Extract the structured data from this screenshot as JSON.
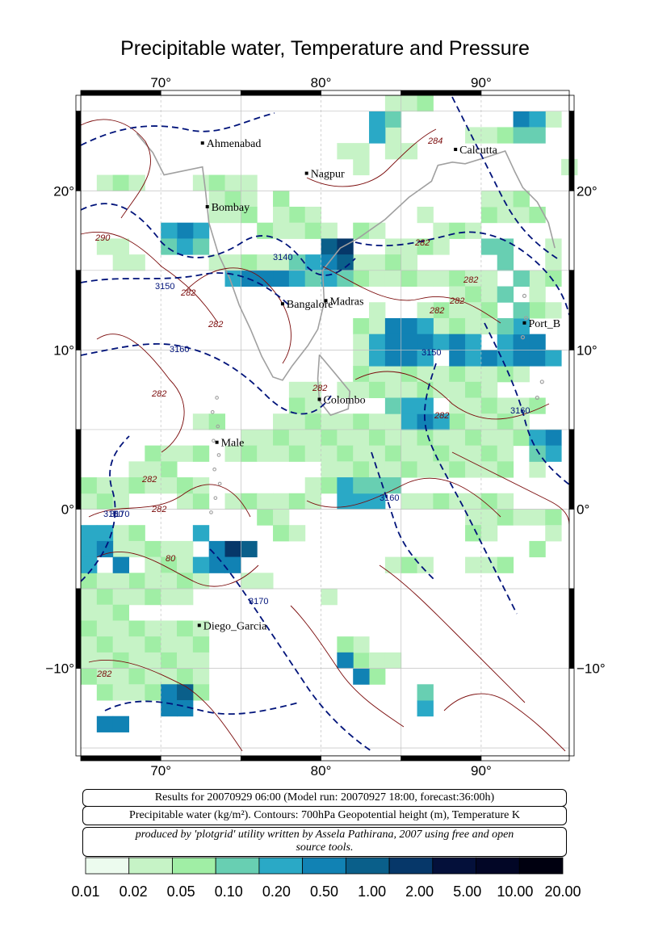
{
  "title": "Precipitable water, Temperature and Pressure",
  "axes": {
    "lon_ticks": [
      "70°",
      "80°",
      "90°"
    ],
    "lat_ticks": [
      "20°",
      "10°",
      "0°",
      "−10°"
    ]
  },
  "cities": [
    {
      "name": "Ahmenabad",
      "lon": 72.6,
      "lat": 23.0
    },
    {
      "name": "Nagpur",
      "lon": 79.1,
      "lat": 21.1
    },
    {
      "name": "Calcutta",
      "lon": 88.4,
      "lat": 22.6
    },
    {
      "name": "Bombay",
      "lon": 72.9,
      "lat": 19.0
    },
    {
      "name": "Bangalore",
      "lon": 77.6,
      "lat": 12.9
    },
    {
      "name": "Madras",
      "lon": 80.3,
      "lat": 13.1
    },
    {
      "name": "Port_B",
      "lon": 92.7,
      "lat": 11.7
    },
    {
      "name": "Colombo",
      "lon": 79.9,
      "lat": 6.9
    },
    {
      "name": "Male",
      "lon": 73.5,
      "lat": 4.2
    },
    {
      "name": "Diego_Garcia",
      "lon": 72.4,
      "lat": -7.3
    }
  ],
  "contour_labels": {
    "temperature": [
      "284",
      "282",
      "290",
      "282",
      "282",
      "282",
      "282",
      "282",
      "282",
      "282",
      "282",
      "282",
      "282",
      "80",
      "282"
    ],
    "geopotential": [
      "3140",
      "3150",
      "3160",
      "3150",
      "3160",
      "3160",
      "3150",
      "3170",
      "3170"
    ]
  },
  "info": {
    "line1": "Results for 20070929 06:00 (Model run: 20070927 18:00, forecast:36:00h)",
    "line2": "Precipitable water (kg/m²).  Contours: 700hPa Geopotential height (m), Temperature K",
    "line3a": "produced by 'plotgrid' utility written by Assela Pathirana, 2007 using free and open",
    "line3b": "source tools."
  },
  "legend": {
    "labels": [
      "0.01",
      "0.02",
      "0.05",
      "0.10",
      "0.20",
      "0.50",
      "1.00",
      "2.00",
      "5.00",
      "10.00",
      "20.00"
    ],
    "colors": [
      "#ecfbee",
      "#c6f3c6",
      "#a0eea5",
      "#68cfb2",
      "#2aa9c6",
      "#1182b4",
      "#0a5f8a",
      "#063769",
      "#04103a",
      "#020626",
      "#000010"
    ]
  },
  "colors": {
    "temp_contour": "#7a0a0a",
    "height_contour": "#00137a",
    "coast": "#a0a0a0",
    "grid": "#c0c0c0"
  },
  "pw_cells": [
    [
      80,
      16,
      6
    ],
    [
      81,
      16,
      7
    ],
    [
      80,
      15,
      5
    ],
    [
      81,
      15,
      6
    ],
    [
      79,
      15,
      4
    ],
    [
      78,
      15,
      3
    ],
    [
      76,
      14,
      5
    ],
    [
      77,
      14,
      5
    ],
    [
      78,
      14,
      4
    ],
    [
      79,
      14,
      3
    ],
    [
      80,
      14,
      4
    ],
    [
      81,
      14,
      3
    ],
    [
      74,
      14,
      4
    ],
    [
      75,
      14,
      5
    ],
    [
      72,
      17,
      4
    ],
    [
      71,
      17,
      5
    ],
    [
      70,
      17,
      4
    ],
    [
      70,
      16,
      3
    ],
    [
      71,
      16,
      4
    ],
    [
      72,
      16,
      3
    ],
    [
      84,
      11,
      5
    ],
    [
      85,
      11,
      5
    ],
    [
      86,
      11,
      4
    ],
    [
      83,
      10,
      4
    ],
    [
      84,
      10,
      5
    ],
    [
      85,
      10,
      5
    ],
    [
      86,
      10,
      5
    ],
    [
      87,
      10,
      4
    ],
    [
      83,
      9,
      4
    ],
    [
      84,
      9,
      5
    ],
    [
      85,
      9,
      5
    ],
    [
      86,
      9,
      4
    ],
    [
      88,
      9,
      5
    ],
    [
      89,
      9,
      4
    ],
    [
      90,
      9,
      5
    ],
    [
      91,
      9,
      4
    ],
    [
      92,
      9,
      5
    ],
    [
      93,
      9,
      5
    ],
    [
      94,
      9,
      4
    ],
    [
      88,
      10,
      5
    ],
    [
      89,
      10,
      4
    ],
    [
      91,
      10,
      4
    ],
    [
      92,
      10,
      5
    ],
    [
      93,
      10,
      5
    ],
    [
      92,
      11,
      4
    ],
    [
      91,
      11,
      3
    ],
    [
      92,
      12,
      3
    ],
    [
      91,
      13,
      3
    ],
    [
      92,
      14,
      3
    ],
    [
      91,
      15,
      3
    ],
    [
      90,
      16,
      3
    ],
    [
      91,
      16,
      3
    ],
    [
      83,
      23,
      4
    ],
    [
      83,
      24,
      4
    ],
    [
      84,
      24,
      3
    ],
    [
      92,
      24,
      5
    ],
    [
      93,
      24,
      4
    ],
    [
      92,
      23,
      3
    ],
    [
      93,
      23,
      3
    ],
    [
      73,
      -3,
      5
    ],
    [
      74,
      -3,
      7
    ],
    [
      75,
      -3,
      6
    ],
    [
      73,
      -4,
      5
    ],
    [
      74,
      -4,
      5
    ],
    [
      72,
      -4,
      4
    ],
    [
      72,
      -2,
      4
    ],
    [
      65,
      -2,
      4
    ],
    [
      66,
      -2,
      4
    ],
    [
      65,
      -3,
      4
    ],
    [
      66,
      -3,
      5
    ],
    [
      67,
      -4,
      5
    ],
    [
      65,
      -4,
      4
    ],
    [
      70,
      -12,
      5
    ],
    [
      71,
      -12,
      6
    ],
    [
      70,
      -13,
      5
    ],
    [
      71,
      -13,
      5
    ],
    [
      66,
      -14,
      5
    ],
    [
      67,
      -14,
      5
    ],
    [
      81,
      0,
      4
    ],
    [
      82,
      0,
      4
    ],
    [
      83,
      0,
      4
    ],
    [
      81,
      1,
      4
    ],
    [
      82,
      1,
      3
    ],
    [
      83,
      1,
      3
    ],
    [
      84,
      1,
      3
    ],
    [
      85,
      5,
      4
    ],
    [
      86,
      5,
      5
    ],
    [
      87,
      5,
      4
    ],
    [
      84,
      6,
      3
    ],
    [
      85,
      6,
      4
    ],
    [
      86,
      6,
      4
    ],
    [
      94,
      4,
      5
    ],
    [
      93,
      4,
      4
    ],
    [
      94,
      3,
      4
    ],
    [
      93,
      3,
      3
    ],
    [
      86,
      -13,
      4
    ],
    [
      86,
      -12,
      3
    ],
    [
      81,
      -10,
      5
    ],
    [
      82,
      -11,
      5
    ]
  ],
  "pw_light": [
    [
      77,
      19
    ],
    [
      78,
      18
    ],
    [
      79,
      18
    ],
    [
      77,
      18
    ],
    [
      76,
      17
    ],
    [
      77,
      17
    ],
    [
      78,
      17
    ],
    [
      79,
      17
    ],
    [
      80,
      17
    ],
    [
      82,
      17
    ],
    [
      83,
      17
    ],
    [
      84,
      16
    ],
    [
      85,
      16
    ],
    [
      86,
      16
    ],
    [
      87,
      16
    ],
    [
      73,
      19
    ],
    [
      74,
      19
    ],
    [
      75,
      19
    ],
    [
      73,
      18
    ],
    [
      74,
      18
    ],
    [
      75,
      18
    ],
    [
      73,
      15
    ],
    [
      74,
      15
    ],
    [
      75,
      15
    ],
    [
      76,
      15
    ],
    [
      77,
      15
    ],
    [
      82,
      15
    ],
    [
      83,
      15
    ],
    [
      84,
      15
    ],
    [
      85,
      15
    ],
    [
      82,
      14
    ],
    [
      83,
      14
    ],
    [
      84,
      14
    ],
    [
      85,
      14
    ],
    [
      86,
      14
    ],
    [
      87,
      14
    ],
    [
      88,
      14
    ],
    [
      89,
      14
    ],
    [
      90,
      14
    ],
    [
      93,
      14
    ],
    [
      88,
      13
    ],
    [
      89,
      13
    ],
    [
      90,
      13
    ],
    [
      93,
      13
    ],
    [
      87,
      12
    ],
    [
      88,
      12
    ],
    [
      89,
      12
    ],
    [
      90,
      12
    ],
    [
      93,
      12
    ],
    [
      94,
      12
    ],
    [
      86,
      12
    ],
    [
      83,
      12
    ],
    [
      82,
      11
    ],
    [
      83,
      11
    ],
    [
      87,
      11
    ],
    [
      88,
      11
    ],
    [
      89,
      11
    ],
    [
      90,
      11
    ],
    [
      82,
      10
    ],
    [
      82,
      9
    ],
    [
      82,
      8
    ],
    [
      83,
      8
    ],
    [
      84,
      8
    ],
    [
      85,
      8
    ],
    [
      86,
      8
    ],
    [
      87,
      8
    ],
    [
      88,
      8
    ],
    [
      89,
      8
    ],
    [
      90,
      8
    ],
    [
      91,
      8
    ],
    [
      92,
      8
    ],
    [
      81,
      7
    ],
    [
      82,
      7
    ],
    [
      83,
      7
    ],
    [
      84,
      7
    ],
    [
      85,
      7
    ],
    [
      86,
      7
    ],
    [
      87,
      7
    ],
    [
      88,
      7
    ],
    [
      89,
      7
    ],
    [
      90,
      7
    ],
    [
      78,
      7
    ],
    [
      79,
      7
    ],
    [
      78,
      6
    ],
    [
      79,
      6
    ],
    [
      77,
      5
    ],
    [
      78,
      5
    ],
    [
      79,
      5
    ],
    [
      80,
      5
    ],
    [
      81,
      5
    ],
    [
      82,
      5
    ],
    [
      83,
      5
    ],
    [
      84,
      5
    ],
    [
      88,
      6
    ],
    [
      89,
      6
    ],
    [
      90,
      6
    ],
    [
      91,
      6
    ],
    [
      92,
      6
    ],
    [
      93,
      6
    ],
    [
      88,
      5
    ],
    [
      89,
      5
    ],
    [
      90,
      5
    ],
    [
      91,
      5
    ],
    [
      92,
      5
    ],
    [
      72,
      5
    ],
    [
      73,
      5
    ],
    [
      75,
      4
    ],
    [
      76,
      4
    ],
    [
      77,
      4
    ],
    [
      78,
      4
    ],
    [
      79,
      4
    ],
    [
      80,
      4
    ],
    [
      81,
      4
    ],
    [
      82,
      4
    ],
    [
      83,
      4
    ],
    [
      84,
      4
    ],
    [
      85,
      4
    ],
    [
      86,
      4
    ],
    [
      87,
      4
    ],
    [
      88,
      4
    ],
    [
      89,
      4
    ],
    [
      90,
      4
    ],
    [
      91,
      4
    ],
    [
      92,
      4
    ],
    [
      69,
      3
    ],
    [
      70,
      3
    ],
    [
      71,
      3
    ],
    [
      72,
      3
    ],
    [
      74,
      3
    ],
    [
      75,
      3
    ],
    [
      76,
      3
    ],
    [
      77,
      3
    ],
    [
      78,
      3
    ],
    [
      79,
      3
    ],
    [
      80,
      3
    ],
    [
      81,
      3
    ],
    [
      82,
      3
    ],
    [
      83,
      3
    ],
    [
      84,
      3
    ],
    [
      85,
      3
    ],
    [
      86,
      3
    ],
    [
      87,
      3
    ],
    [
      88,
      3
    ],
    [
      89,
      3
    ],
    [
      90,
      3
    ],
    [
      91,
      3
    ],
    [
      68,
      2
    ],
    [
      69,
      2
    ],
    [
      70,
      2
    ],
    [
      80,
      2
    ],
    [
      81,
      2
    ],
    [
      82,
      2
    ],
    [
      83,
      2
    ],
    [
      84,
      2
    ],
    [
      85,
      2
    ],
    [
      86,
      2
    ],
    [
      87,
      2
    ],
    [
      88,
      2
    ],
    [
      89,
      2
    ],
    [
      90,
      2
    ],
    [
      91,
      2
    ],
    [
      93,
      2
    ],
    [
      65,
      0
    ],
    [
      66,
      0
    ],
    [
      67,
      0
    ],
    [
      71,
      0
    ],
    [
      72,
      0
    ],
    [
      74,
      0
    ],
    [
      75,
      0
    ],
    [
      76,
      0
    ],
    [
      77,
      0
    ],
    [
      78,
      0
    ],
    [
      79,
      0
    ],
    [
      85,
      0
    ],
    [
      86,
      0
    ],
    [
      87,
      0
    ],
    [
      88,
      0
    ],
    [
      89,
      0
    ],
    [
      90,
      0
    ],
    [
      91,
      0
    ],
    [
      65,
      1
    ],
    [
      66,
      1
    ],
    [
      67,
      1
    ],
    [
      68,
      1
    ],
    [
      69,
      1
    ],
    [
      70,
      1
    ],
    [
      71,
      1
    ],
    [
      72,
      1
    ],
    [
      79,
      1
    ],
    [
      80,
      1
    ],
    [
      76,
      -1
    ],
    [
      77,
      -1
    ],
    [
      77,
      -2
    ],
    [
      78,
      -2
    ],
    [
      89,
      -1
    ],
    [
      90,
      -1
    ],
    [
      91,
      -1
    ],
    [
      92,
      -1
    ],
    [
      93,
      -1
    ],
    [
      94,
      -1
    ],
    [
      89,
      -2
    ],
    [
      90,
      -2
    ],
    [
      94,
      -2
    ],
    [
      93,
      -3
    ],
    [
      67,
      -2
    ],
    [
      68,
      -2
    ],
    [
      67,
      -3
    ],
    [
      68,
      -3
    ],
    [
      69,
      -3
    ],
    [
      70,
      -3
    ],
    [
      71,
      -3
    ],
    [
      69,
      -4
    ],
    [
      70,
      -4
    ],
    [
      71,
      -4
    ],
    [
      68,
      -5
    ],
    [
      69,
      -5
    ],
    [
      70,
      -5
    ],
    [
      71,
      -5
    ],
    [
      72,
      -5
    ],
    [
      75,
      -5
    ],
    [
      76,
      -5
    ],
    [
      65,
      -5
    ],
    [
      66,
      -5
    ],
    [
      67,
      -5
    ],
    [
      65,
      -6
    ],
    [
      66,
      -6
    ],
    [
      67,
      -6
    ],
    [
      68,
      -6
    ],
    [
      69,
      -6
    ],
    [
      70,
      -6
    ],
    [
      71,
      -6
    ],
    [
      80,
      -6
    ],
    [
      65,
      -7
    ],
    [
      66,
      -7
    ],
    [
      67,
      -7
    ],
    [
      65,
      -8
    ],
    [
      66,
      -8
    ],
    [
      67,
      -8
    ],
    [
      68,
      -8
    ],
    [
      69,
      -8
    ],
    [
      70,
      -8
    ],
    [
      71,
      -8
    ],
    [
      72,
      -8
    ],
    [
      65,
      -9
    ],
    [
      66,
      -9
    ],
    [
      67,
      -9
    ],
    [
      68,
      -9
    ],
    [
      69,
      -9
    ],
    [
      70,
      -9
    ],
    [
      71,
      -9
    ],
    [
      72,
      -9
    ],
    [
      65,
      -10
    ],
    [
      66,
      -10
    ],
    [
      67,
      -10
    ],
    [
      68,
      -10
    ],
    [
      69,
      -10
    ],
    [
      70,
      -10
    ],
    [
      71,
      -10
    ],
    [
      72,
      -10
    ],
    [
      65,
      -11
    ],
    [
      66,
      -11
    ],
    [
      67,
      -11
    ],
    [
      68,
      -11
    ],
    [
      69,
      -11
    ],
    [
      70,
      -11
    ],
    [
      71,
      -11
    ],
    [
      72,
      -11
    ],
    [
      66,
      -12
    ],
    [
      67,
      -12
    ],
    [
      68,
      -12
    ],
    [
      69,
      -12
    ],
    [
      72,
      -12
    ],
    [
      84,
      -4
    ],
    [
      85,
      -4
    ],
    [
      86,
      -4
    ],
    [
      89,
      -4
    ],
    [
      90,
      -4
    ],
    [
      91,
      -4
    ],
    [
      82,
      -10
    ],
    [
      83,
      -10
    ],
    [
      84,
      -10
    ],
    [
      83,
      -11
    ],
    [
      82,
      -9
    ],
    [
      81,
      -9
    ],
    [
      87,
      17
    ],
    [
      88,
      17
    ],
    [
      89,
      17
    ],
    [
      86,
      18
    ],
    [
      90,
      18
    ],
    [
      91,
      18
    ],
    [
      92,
      18
    ],
    [
      93,
      18
    ],
    [
      90,
      19
    ],
    [
      91,
      19
    ],
    [
      92,
      19
    ],
    [
      94,
      16
    ],
    [
      94,
      15
    ],
    [
      94,
      14
    ],
    [
      82,
      21
    ],
    [
      82,
      22
    ],
    [
      81,
      22
    ],
    [
      84,
      22
    ],
    [
      85,
      22
    ],
    [
      84,
      23
    ],
    [
      84,
      25
    ],
    [
      85,
      25
    ],
    [
      86,
      25
    ],
    [
      89,
      23
    ],
    [
      90,
      23
    ],
    [
      91,
      23
    ],
    [
      94,
      24
    ],
    [
      95,
      21
    ],
    [
      66,
      16
    ],
    [
      67,
      16
    ],
    [
      67,
      15
    ],
    [
      68,
      15
    ],
    [
      66,
      20
    ],
    [
      67,
      20
    ],
    [
      68,
      20
    ],
    [
      72,
      20
    ],
    [
      73,
      20
    ],
    [
      74,
      20
    ],
    [
      75,
      20
    ]
  ]
}
